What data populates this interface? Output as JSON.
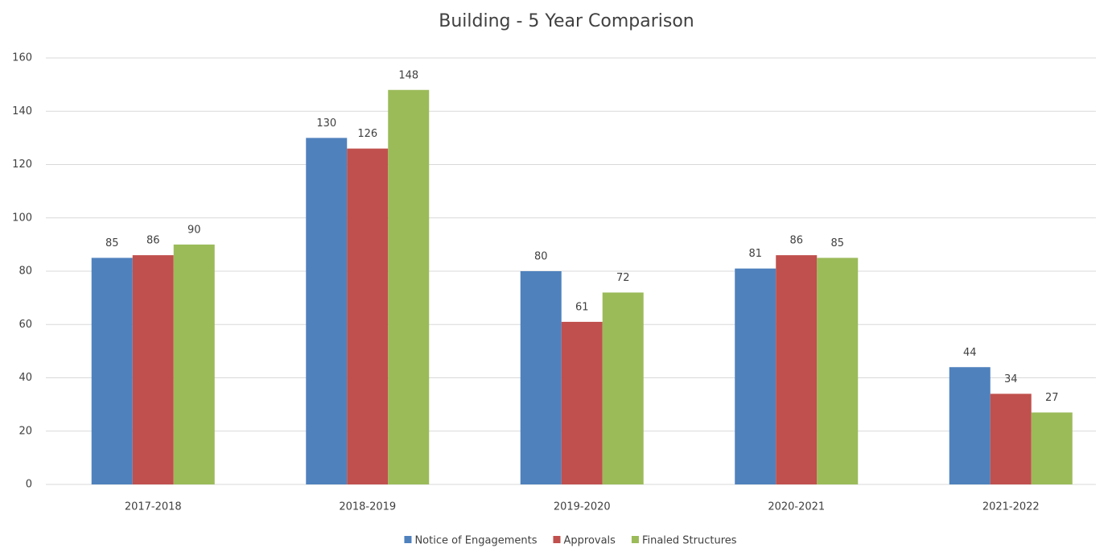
{
  "chart_data": {
    "type": "bar",
    "title": "Building - 5 Year Comparison",
    "categories": [
      "2017-2018",
      "2018-2019",
      "2019-2020",
      "2020-2021",
      "2021-2022"
    ],
    "series": [
      {
        "name": "Notice of Engagements",
        "color": "#4f81bd",
        "values": [
          85,
          130,
          80,
          81,
          44
        ]
      },
      {
        "name": "Approvals",
        "color": "#c0504d",
        "values": [
          86,
          126,
          61,
          86,
          34
        ]
      },
      {
        "name": "Finaled Structures",
        "color": "#9bbb59",
        "values": [
          90,
          148,
          72,
          85,
          27
        ]
      }
    ],
    "ylim": [
      0,
      160
    ],
    "yticks": [
      0,
      20,
      40,
      60,
      80,
      100,
      120,
      140,
      160
    ],
    "grid": true,
    "legend": "bottom"
  }
}
